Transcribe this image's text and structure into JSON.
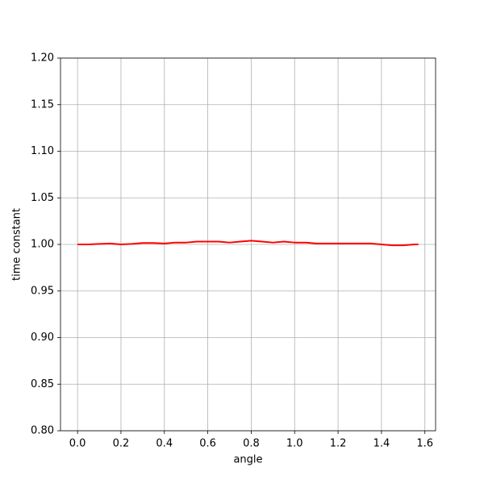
{
  "chart_data": {
    "type": "line",
    "xlabel": "angle",
    "ylabel": "time constant",
    "x": [
      0,
      0.05,
      0.1,
      0.15,
      0.2,
      0.25,
      0.3,
      0.35,
      0.4,
      0.45,
      0.5,
      0.55,
      0.6,
      0.65,
      0.7,
      0.75,
      0.8,
      0.85,
      0.9,
      0.95,
      1.0,
      1.05,
      1.1,
      1.15,
      1.2,
      1.25,
      1.3,
      1.35,
      1.4,
      1.45,
      1.5,
      1.55,
      1.57
    ],
    "values": [
      1.0,
      1.0,
      1.0005,
      1.001,
      1.0,
      1.0005,
      1.0015,
      1.0015,
      1.001,
      1.002,
      1.002,
      1.003,
      1.003,
      1.003,
      1.002,
      1.003,
      1.004,
      1.003,
      1.002,
      1.003,
      1.002,
      1.002,
      1.001,
      1.001,
      1.001,
      1.001,
      1.001,
      1.001,
      1.0,
      0.999,
      0.999,
      1.0,
      1.0
    ],
    "color": "#ff0000",
    "xlim": [
      -0.0785,
      1.6493
    ],
    "ylim": [
      0.8,
      1.2
    ],
    "xticks": [
      {
        "value": 0,
        "label": "0.0"
      },
      {
        "value": 0.2,
        "label": "0.2"
      },
      {
        "value": 0.4,
        "label": "0.4"
      },
      {
        "value": 0.6,
        "label": "0.6"
      },
      {
        "value": 0.8,
        "label": "0.8"
      },
      {
        "value": 1.0,
        "label": "1.0"
      },
      {
        "value": 1.2,
        "label": "1.2"
      },
      {
        "value": 1.4,
        "label": "1.4"
      },
      {
        "value": 1.6,
        "label": "1.6"
      }
    ],
    "yticks": [
      {
        "value": 0.8,
        "label": "0.80"
      },
      {
        "value": 0.85,
        "label": "0.85"
      },
      {
        "value": 0.9,
        "label": "0.90"
      },
      {
        "value": 0.95,
        "label": "0.95"
      },
      {
        "value": 1.0,
        "label": "1.00"
      },
      {
        "value": 1.05,
        "label": "1.05"
      },
      {
        "value": 1.1,
        "label": "1.10"
      },
      {
        "value": 1.15,
        "label": "1.15"
      },
      {
        "value": 1.2,
        "label": "1.20"
      }
    ],
    "grid": true
  }
}
